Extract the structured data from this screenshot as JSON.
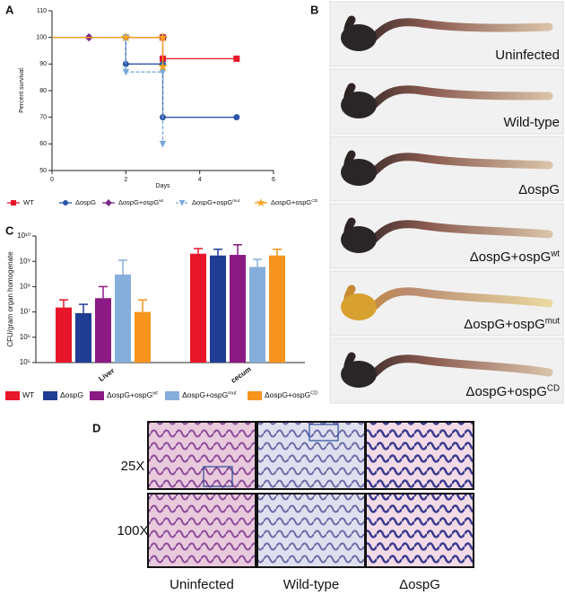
{
  "chart_data": [
    {
      "type": "line",
      "panel": "A",
      "ylabel": "Percent survival",
      "xlabel": "Days",
      "xlim": [
        0,
        6
      ],
      "xticks": [
        0,
        2,
        4,
        6
      ],
      "ylim": [
        50,
        110
      ],
      "yticks": [
        50,
        60,
        70,
        80,
        90,
        100,
        110
      ],
      "series": [
        {
          "name": "WT",
          "color": "#e8162a",
          "marker": "square",
          "x": [
            0,
            3,
            3,
            5
          ],
          "values": [
            100,
            100,
            92,
            92
          ]
        },
        {
          "name": "ΔospG",
          "color": "#2c56a8",
          "marker": "circle",
          "x": [
            0,
            2,
            2,
            3,
            3,
            5
          ],
          "values": [
            100,
            100,
            90,
            90,
            70,
            70
          ]
        },
        {
          "name": "ΔospG+ospG",
          "sup": "wt",
          "color": "#7b2a8c",
          "marker": "diamond",
          "x": [
            0,
            1,
            3
          ],
          "values": [
            100,
            100,
            100
          ]
        },
        {
          "name": "ΔospG+ospG",
          "sup": "mut",
          "color": "#7aa9dc",
          "marker": "triangle",
          "dash": true,
          "x": [
            0,
            2,
            2,
            3,
            3
          ],
          "values": [
            100,
            100,
            87,
            87,
            60
          ]
        },
        {
          "name": "ΔospG+ospG",
          "sup": "CD",
          "color": "#f7a21d",
          "marker": "star",
          "x": [
            0,
            2,
            3,
            3
          ],
          "values": [
            100,
            100,
            100,
            89
          ]
        }
      ]
    },
    {
      "type": "bar",
      "panel": "C",
      "ylabel": "CFU/gram organ homogenate",
      "log": true,
      "categories": [
        "Liver",
        "cecum"
      ],
      "ylim": [
        100000,
        10000000000
      ],
      "yticks": [
        {
          "value": 100000,
          "label": "10⁵"
        },
        {
          "value": 1000000,
          "label": "10⁶"
        },
        {
          "value": 10000000,
          "label": "10⁷"
        },
        {
          "value": 100000000,
          "label": "10⁸"
        },
        {
          "value": 1000000000,
          "label": "10⁹"
        },
        {
          "value": 10000000000,
          "label": "10¹⁰"
        }
      ],
      "series": [
        {
          "name": "WT",
          "color": "#e8162a",
          "values": [
            15000000,
            2000000000
          ],
          "errors": [
            15000000,
            1200000000
          ]
        },
        {
          "name": "ΔospG",
          "color": "#203d94",
          "values": [
            9000000,
            1700000000
          ],
          "errors": [
            11000000,
            1300000000
          ]
        },
        {
          "name": "ΔospG+ospG",
          "sup": "wt",
          "color": "#8b1a84",
          "values": [
            35000000,
            1800000000
          ],
          "errors": [
            65000000,
            2700000000
          ]
        },
        {
          "name": "ΔospG+ospG",
          "sup": "mut",
          "color": "#86aedb",
          "values": [
            300000000,
            600000000
          ],
          "errors": [
            800000000,
            600000000
          ]
        },
        {
          "name": "ΔospG+ospG",
          "sup": "CD",
          "color": "#f7941d",
          "values": [
            10000000,
            1700000000
          ],
          "errors": [
            20000000,
            1300000000
          ]
        }
      ]
    }
  ],
  "panel_b": {
    "label": "B",
    "strips": [
      {
        "text": "Uninfected"
      },
      {
        "text": "Wild-type"
      },
      {
        "text": "ΔospG"
      },
      {
        "text": "ΔospG+ospG",
        "sup": "wt"
      },
      {
        "text": "ΔospG+ospG",
        "sup": "mut"
      },
      {
        "text": "ΔospG+ospG",
        "sup": "CD"
      }
    ]
  },
  "panel_d": {
    "label": "D",
    "rows": [
      "25X",
      "100X"
    ],
    "columns": [
      "Uninfected",
      "Wild-type",
      "ΔospG"
    ]
  }
}
